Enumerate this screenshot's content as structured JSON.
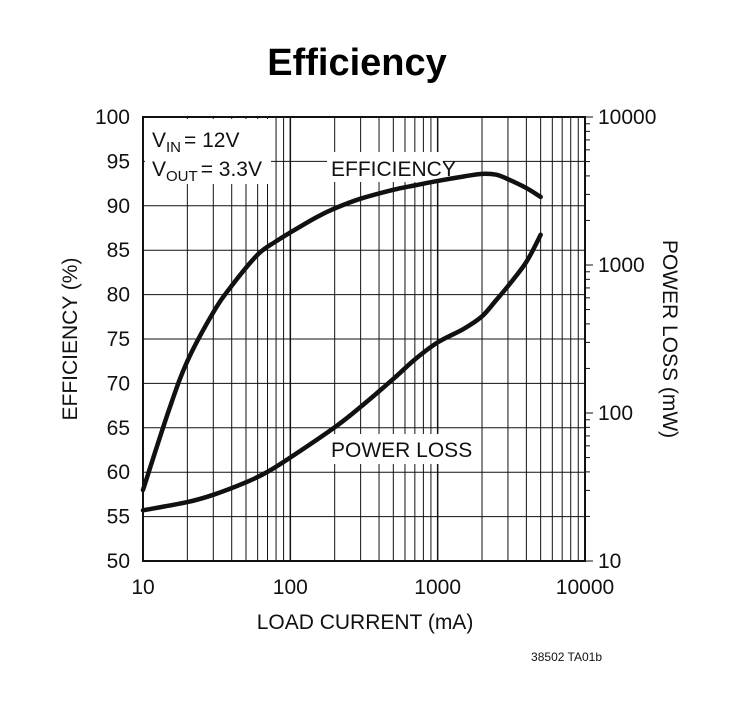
{
  "chart_data": {
    "type": "line",
    "title": "Efficiency",
    "xlabel": "LOAD CURRENT (mA)",
    "ylabel": "EFFICIENCY (%)",
    "y2label": "POWER LOSS (mW)",
    "xscale": "log",
    "xlim": [
      10,
      10000
    ],
    "ylim": [
      50,
      100
    ],
    "y2scale": "log",
    "y2lim": [
      10,
      10000
    ],
    "x_ticks": [
      "10",
      "100",
      "1000",
      "10000"
    ],
    "y_ticks": [
      "50",
      "55",
      "60",
      "65",
      "70",
      "75",
      "80",
      "85",
      "90",
      "95",
      "100"
    ],
    "y2_ticks": [
      "10",
      "100",
      "1000",
      "10000"
    ],
    "grid": true,
    "conditions": {
      "vin_sub": "IN",
      "vin_val": "= 12V",
      "vout_sub": "OUT",
      "vout_val": "= 3.3V",
      "v": "V"
    },
    "series": [
      {
        "name": "EFFICIENCY",
        "axis": "left",
        "x": [
          10,
          15,
          20,
          30,
          40,
          60,
          80,
          100,
          150,
          200,
          300,
          500,
          700,
          1000,
          1500,
          2000,
          2500,
          3000,
          4000,
          5000
        ],
        "y": [
          58,
          67,
          72.5,
          78,
          81,
          84.5,
          86,
          87,
          88.7,
          89.7,
          90.8,
          91.8,
          92.3,
          92.8,
          93.3,
          93.6,
          93.5,
          93,
          92,
          91
        ]
      },
      {
        "name": "POWER LOSS",
        "axis": "right",
        "x": [
          10,
          20,
          30,
          50,
          70,
          100,
          200,
          300,
          500,
          700,
          1000,
          1500,
          2000,
          2500,
          3000,
          4000,
          5000
        ],
        "y": [
          22,
          25,
          28,
          34,
          40,
          50,
          80,
          110,
          170,
          230,
          300,
          370,
          450,
          580,
          720,
          1050,
          1600
        ]
      }
    ],
    "annotations": [
      "EFFICIENCY",
      "POWER LOSS"
    ],
    "footnote": "38502 TA01b"
  }
}
